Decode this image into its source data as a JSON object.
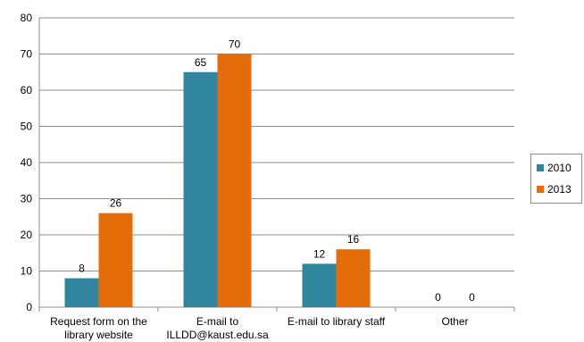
{
  "chart_data": {
    "type": "bar",
    "categories": [
      [
        "Request form on the",
        "library website"
      ],
      [
        "E-mail to",
        "ILLDD@kaust.edu.sa"
      ],
      [
        "E-mail to library staff"
      ],
      [
        "Other"
      ]
    ],
    "series": [
      {
        "name": "2010",
        "color": "#31859c",
        "values": [
          8,
          65,
          12,
          0
        ]
      },
      {
        "name": "2013",
        "color": "#e46c0a",
        "values": [
          26,
          70,
          16,
          0
        ]
      }
    ],
    "yticks": [
      "0",
      "10",
      "20",
      "30",
      "40",
      "50",
      "60",
      "70",
      "80"
    ],
    "ylim": [
      0,
      80
    ],
    "grid": true,
    "legend_position": "right"
  }
}
